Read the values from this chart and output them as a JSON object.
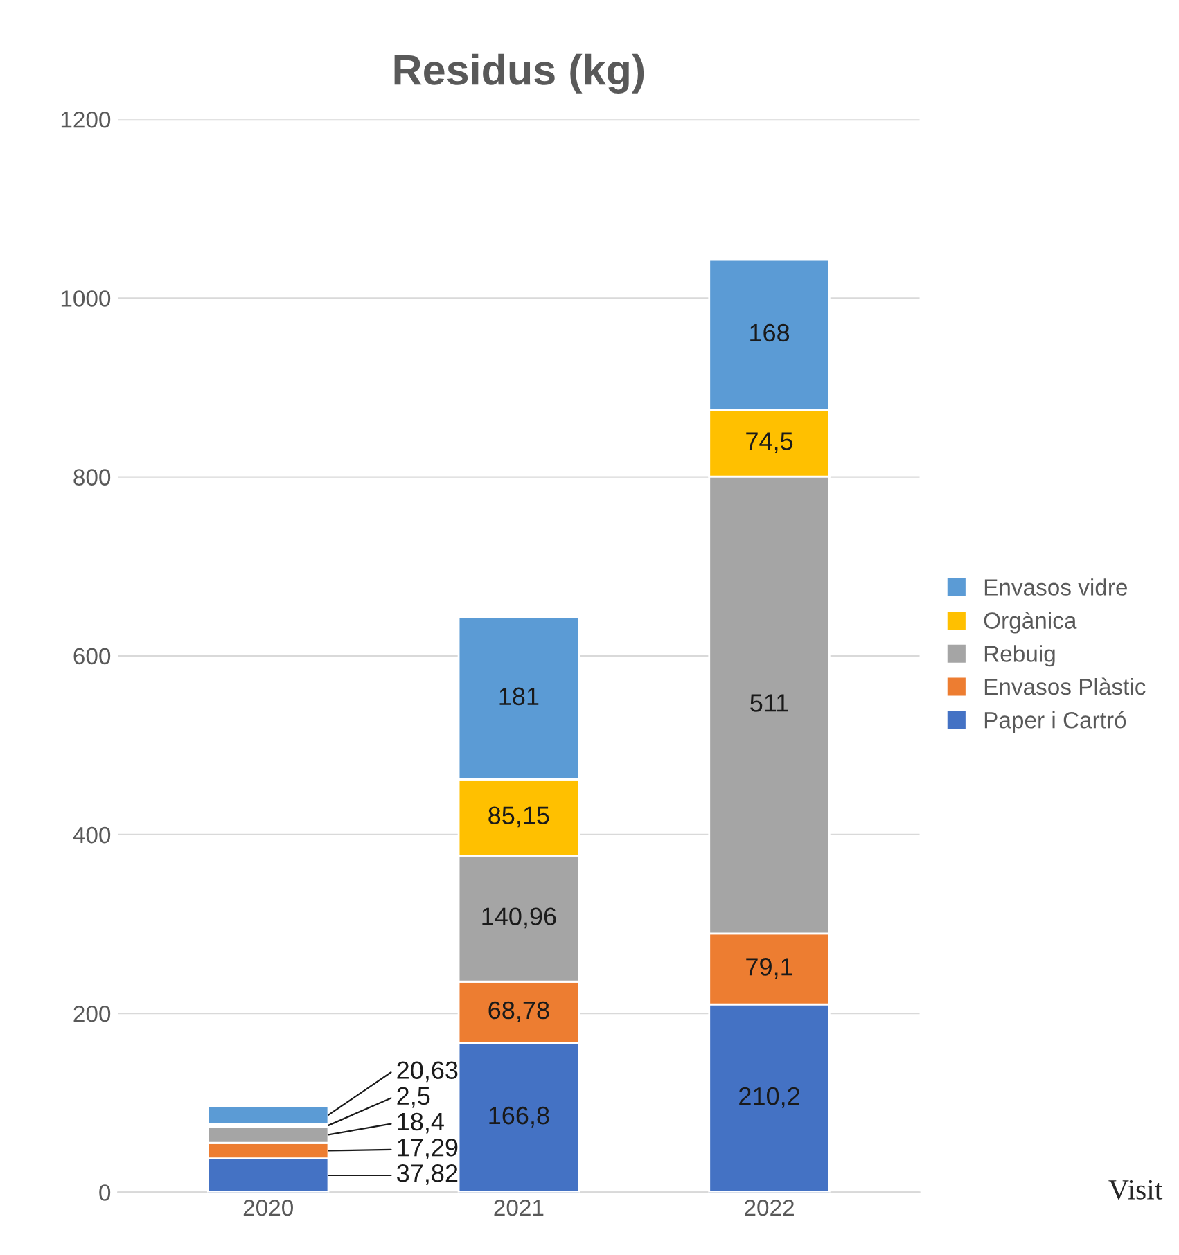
{
  "chart_data": {
    "type": "bar",
    "title": "Residus (kg)",
    "stacked": true,
    "categories": [
      "2020",
      "2021",
      "2022"
    ],
    "series": [
      {
        "name": "Paper i Cartró",
        "color": "#4472c4",
        "values": [
          37.82,
          166.8,
          210.2
        ],
        "value_labels": [
          "37,82",
          "166,8",
          "210,2"
        ]
      },
      {
        "name": "Envasos Plàstic",
        "color": "#ed7d31",
        "values": [
          17.29,
          68.78,
          79.1
        ],
        "value_labels": [
          "17,29",
          "68,78",
          "79,1"
        ]
      },
      {
        "name": "Rebuig",
        "color": "#a5a5a5",
        "values": [
          18.4,
          140.96,
          511
        ],
        "value_labels": [
          "18,4",
          "140,96",
          "511"
        ]
      },
      {
        "name": "Orgànica",
        "color": "#ffc000",
        "values": [
          2.5,
          85.15,
          74.5
        ],
        "value_labels": [
          "2,5",
          "85,15",
          "74,5"
        ]
      },
      {
        "name": "Envasos vidre",
        "color": "#5b9bd5",
        "values": [
          20.63,
          181,
          168
        ],
        "value_labels": [
          "20,63",
          "181",
          "168"
        ]
      }
    ],
    "ylim": [
      0,
      1200
    ],
    "yticks": [
      0,
      200,
      400,
      600,
      800,
      1000,
      1200
    ],
    "grid": "y",
    "legend": "right",
    "annotations": [
      "Visit"
    ]
  }
}
